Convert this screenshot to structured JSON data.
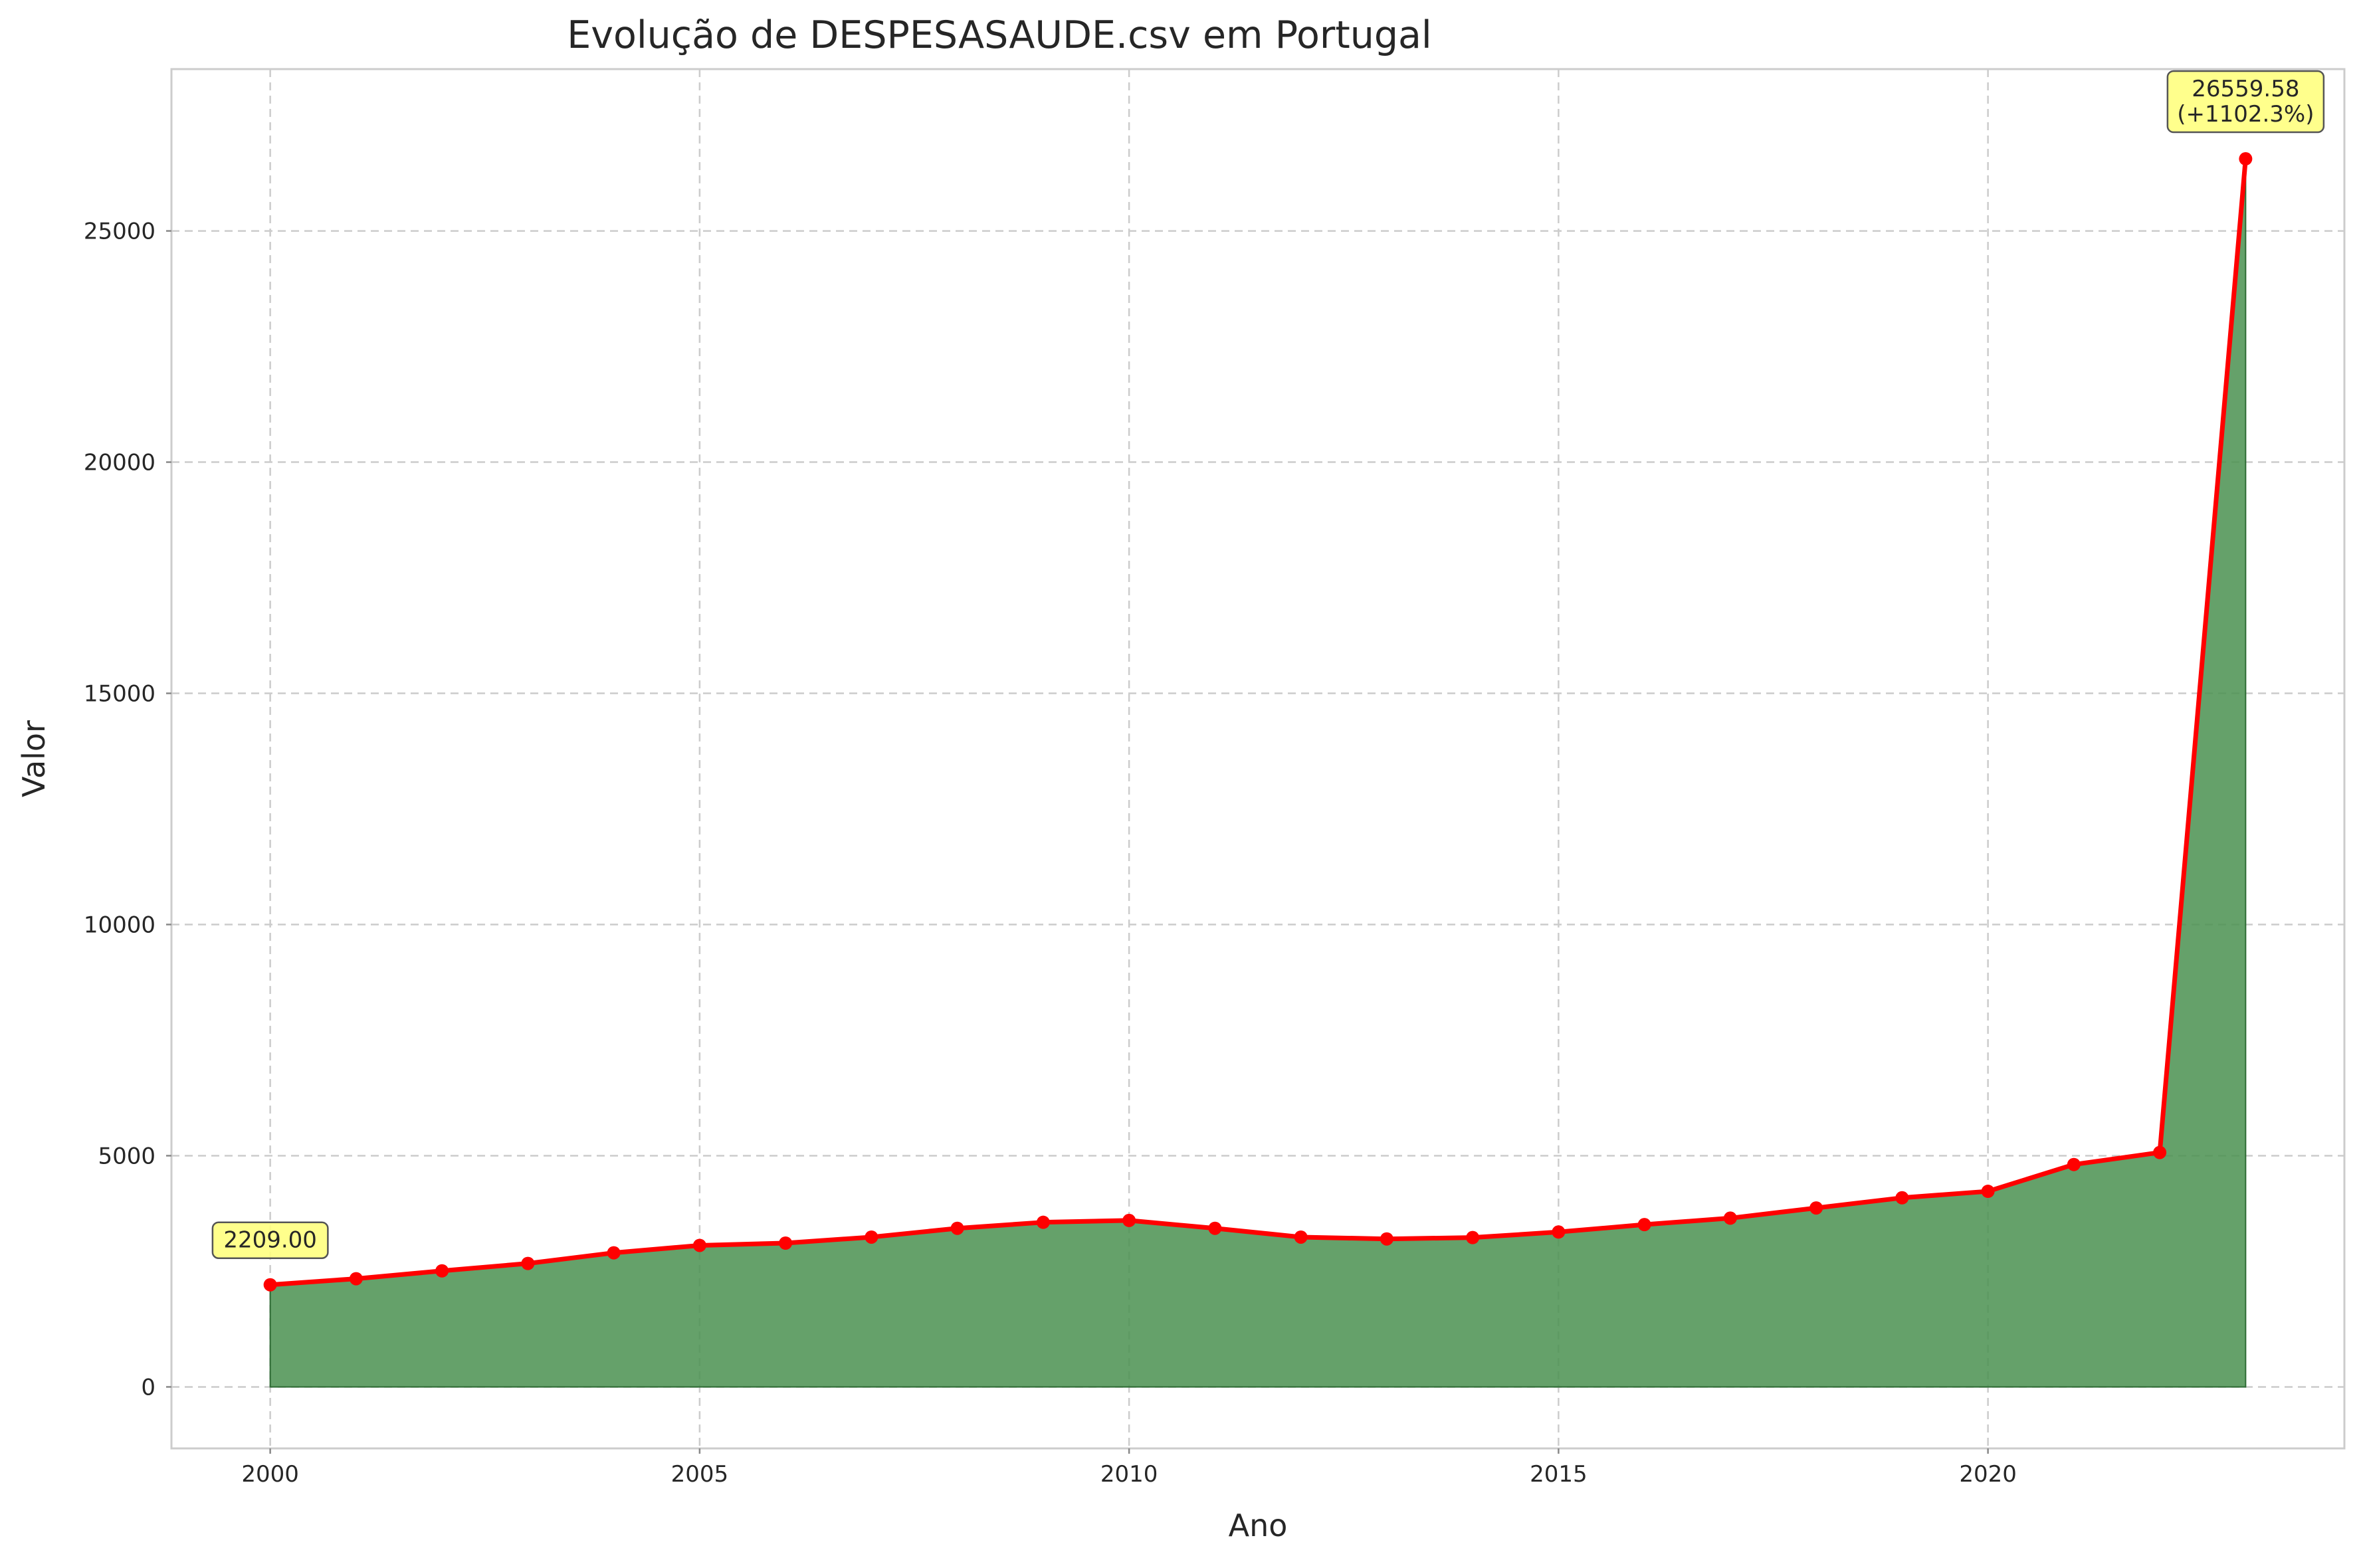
{
  "chart_data": {
    "type": "area",
    "title": "Evolução de DESPESASAUDE.csv em Portugal",
    "xlabel": "Ano",
    "ylabel": "Valor",
    "xlim": [
      1998.85,
      2024.15
    ],
    "ylim": [
      -1330,
      28500
    ],
    "x_ticks": [
      2000,
      2005,
      2010,
      2015,
      2020
    ],
    "y_ticks": [
      0,
      5000,
      10000,
      15000,
      20000,
      25000
    ],
    "grid": true,
    "series": [
      {
        "x": [
          2000,
          2001,
          2002,
          2003,
          2004,
          2005,
          2006,
          2007,
          2008,
          2009,
          2010,
          2011,
          2012,
          2013,
          2014,
          2015,
          2016,
          2017,
          2018,
          2019,
          2020,
          2021,
          2022,
          2023
        ],
        "values": [
          2209.0,
          2340,
          2510,
          2670,
          2900,
          3060,
          3110,
          3240,
          3430,
          3560,
          3600,
          3430,
          3240,
          3200,
          3230,
          3350,
          3510,
          3650,
          3870,
          4090,
          4230,
          4810,
          5070,
          26559.58
        ],
        "line_color": "#ff0000",
        "fill_color": "#4a9150",
        "marker": "circle"
      }
    ],
    "annotations": [
      {
        "x": 2000,
        "y": 2209.0,
        "lines": [
          "2209.00"
        ]
      },
      {
        "x": 2023,
        "y": 26559.58,
        "lines": [
          "26559.58",
          "(+1102.3%)"
        ]
      }
    ],
    "annotation_bg": "#ffff80"
  }
}
